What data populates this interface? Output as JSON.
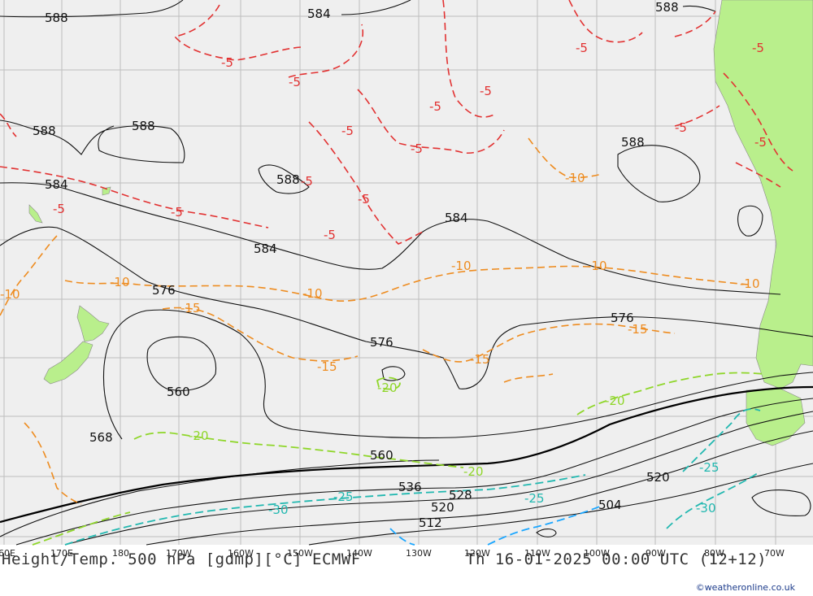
{
  "map": {
    "title": "Height/Temp. 500 hPa [gdmp][°C] ECMWF",
    "valid_time": "Th 16-01-2025 00:00 UTC (12+12)",
    "credit": "©weatheronline.co.uk",
    "colors": {
      "ocean": "#efefef",
      "land": "#b9ef8c",
      "height_contour": "#111111",
      "temp_minus5": "#e23232",
      "temp_minus10": "#ee8c20",
      "temp_minus15": "#ee8c20",
      "temp_minus20": "#8fd62a",
      "temp_minus25": "#22b8b0",
      "temp_minus30": "#1aa6ff"
    },
    "longitude_labels": [
      "60E",
      "170E",
      "180",
      "170W",
      "160W",
      "150W",
      "140W",
      "130W",
      "120W",
      "110W",
      "100W",
      "90W",
      "80W",
      "70W"
    ],
    "height_labels": {
      "h588a": "588",
      "h584a": "584",
      "h588b": "588",
      "h588c": "588",
      "h588d": "588",
      "h588e": "588",
      "h588f": "588",
      "h584b": "584",
      "h584c": "584",
      "h584d": "584",
      "h576a": "576",
      "h576b": "576",
      "h576c": "576",
      "h560a": "560",
      "h568": "568",
      "h560b": "560",
      "h536": "536",
      "h528": "528",
      "h520a": "520",
      "h520b": "520",
      "h512": "512",
      "h504": "504"
    },
    "temp_labels": {
      "t5a": "-5",
      "t5b": "-5",
      "t5c": "-5",
      "t5d": "-5",
      "t5e": "-5",
      "t5f": "-5",
      "t5g": "-5",
      "t5h": "-5",
      "t5i": "-5",
      "t5j": "-5",
      "t5k": "-5",
      "t5l": "-5",
      "t5m": "-5",
      "t5n": "-5",
      "t5o": "-5",
      "t10a": "-10",
      "t10b": "-10",
      "t10c": "-10",
      "t10d": "-10",
      "t10e": "-10",
      "t10f": "-10",
      "t10g": "-10",
      "t15a": "-15",
      "t15b": "-15",
      "t15c": "-15",
      "t15d": "-15",
      "t20a": "-20",
      "t20b": "-20",
      "t20c": "-20",
      "t20d": "-20",
      "t25a": "-25",
      "t25b": "-25",
      "t25c": "-25",
      "t30a": "-30",
      "t30b": "-30"
    }
  }
}
